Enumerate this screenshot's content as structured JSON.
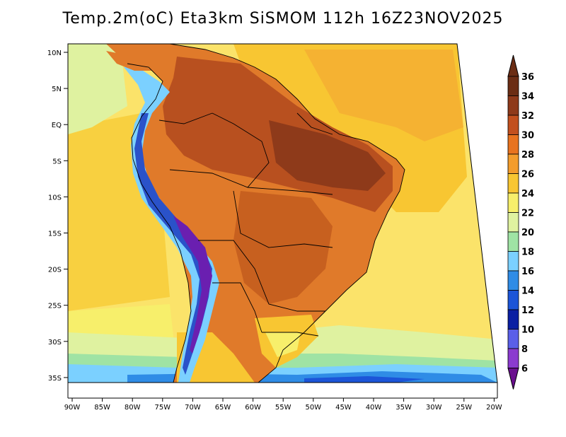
{
  "title": "Temp.2m(oC) Eta3km SiSMOM 112h 16Z23NOV2025",
  "lat_labels": [
    "10N",
    "5N",
    "EQ",
    "5S",
    "10S",
    "15S",
    "20S",
    "25S",
    "30S",
    "35S"
  ],
  "lon_labels": [
    "90W",
    "85W",
    "80W",
    "75W",
    "70W",
    "65W",
    "60W",
    "55W",
    "50W",
    "45W",
    "40W",
    "35W",
    "30W",
    "25W",
    "20W"
  ],
  "colorbar": {
    "labels": [
      "36",
      "34",
      "32",
      "30",
      "28",
      "26",
      "24",
      "22",
      "20",
      "18",
      "16",
      "14",
      "12",
      "10",
      "8",
      "6"
    ],
    "colors_top_to_bottom": [
      "#6b2d14",
      "#8e3a1a",
      "#c2501e",
      "#e8731f",
      "#f39c2c",
      "#f8c632",
      "#f7ef6b",
      "#dff2a0",
      "#9fe3a4",
      "#7bd0ff",
      "#2f8ce6",
      "#1c55d8",
      "#0a1fa3",
      "#5a5fe8",
      "#8b3bcf",
      "#6a0f8e"
    ]
  },
  "colors": {
    "ocean_far": "#fbe36a",
    "ocean_warm": "#f8c632",
    "land_hot": "#e07a2a",
    "land_hottest": "#9a3f1a",
    "andes_cold": "#2a52c9",
    "south_cold": "#7bd0ff",
    "border": "#000000"
  }
}
